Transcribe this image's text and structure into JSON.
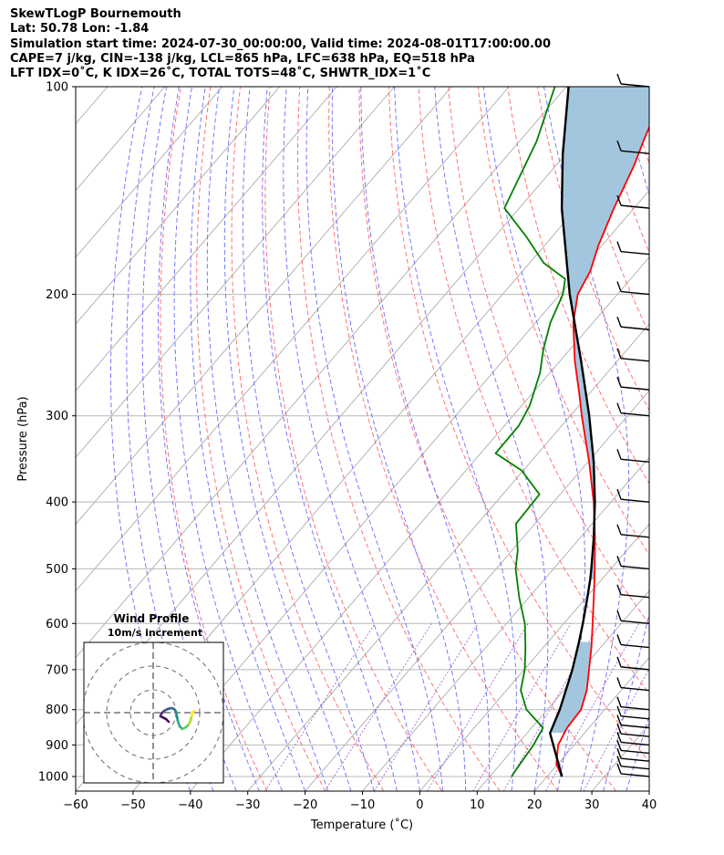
{
  "header": {
    "line1": "SkewTLogP Bournemouth",
    "line2": "Lat: 50.78   Lon: -1.84",
    "line3": "Simulation start time: 2024-07-30_00:00:00, Valid time: 2024-08-01T17:00:00.00",
    "line4": "CAPE=7 j/kg, CIN=-138 j/kg, LCL=865 hPa, LFC=638 hPa, EQ=518 hPa",
    "line5": "LFT IDX=0˚C, K IDX=26˚C, TOTAL TOTS=48˚C, SHWTR_IDX=1˚C"
  },
  "chart_data": {
    "type": "skewt-logp",
    "xlabel": "Temperature (˚C)",
    "ylabel": "Pressure (hPa)",
    "xlim": [
      -60,
      40
    ],
    "ylim": [
      1050,
      100
    ],
    "x_ticks": [
      "−60",
      "−50",
      "−40",
      "−30",
      "−20",
      "−10",
      "0",
      "10",
      "20",
      "30",
      "40"
    ],
    "y_ticks": [
      "100",
      "200",
      "300",
      "400",
      "500",
      "600",
      "700",
      "800",
      "900",
      "1000"
    ],
    "grid": true,
    "series": [
      {
        "name": "Temperature",
        "color": "#ff0000",
        "points": [
          [
            1000,
            22.6
          ],
          [
            960,
            19.8
          ],
          [
            900,
            17.2
          ],
          [
            850,
            16.2
          ],
          [
            800,
            15.9
          ],
          [
            750,
            14.0
          ],
          [
            700,
            11.3
          ],
          [
            650,
            8.4
          ],
          [
            600,
            5.0
          ],
          [
            550,
            1.3
          ],
          [
            500,
            -2.8
          ],
          [
            450,
            -7.5
          ],
          [
            400,
            -13.0
          ],
          [
            350,
            -19.8
          ],
          [
            300,
            -28.0
          ],
          [
            280,
            -31.5
          ],
          [
            250,
            -37.4
          ],
          [
            220,
            -43.4
          ],
          [
            200,
            -46.9
          ],
          [
            185,
            -48.2
          ],
          [
            170,
            -50.6
          ],
          [
            150,
            -53.5
          ],
          [
            130,
            -56.4
          ],
          [
            120,
            -58.4
          ],
          [
            110,
            -60.4
          ],
          [
            100,
            -63.0
          ]
        ]
      },
      {
        "name": "Dewpoint",
        "color": "#008000",
        "points": [
          [
            1000,
            13.8
          ],
          [
            980,
            13.6
          ],
          [
            900,
            12.9
          ],
          [
            850,
            12.0
          ],
          [
            800,
            6.4
          ],
          [
            750,
            2.5
          ],
          [
            700,
            0.1
          ],
          [
            650,
            -3.1
          ],
          [
            600,
            -6.8
          ],
          [
            550,
            -11.7
          ],
          [
            500,
            -16.6
          ],
          [
            470,
            -19.0
          ],
          [
            430,
            -23.3
          ],
          [
            390,
            -23.6
          ],
          [
            360,
            -30.3
          ],
          [
            340,
            -37.4
          ],
          [
            310,
            -37.5
          ],
          [
            290,
            -38.6
          ],
          [
            260,
            -41.7
          ],
          [
            240,
            -44.7
          ],
          [
            220,
            -47.4
          ],
          [
            200,
            -49.5
          ],
          [
            190,
            -51.4
          ],
          [
            180,
            -57.6
          ],
          [
            165,
            -64.5
          ],
          [
            150,
            -72.6
          ],
          [
            120,
            -77.0
          ],
          [
            100,
            -82.0
          ]
        ]
      },
      {
        "name": "Parcel",
        "color": "#000000",
        "points": [
          [
            1000,
            22.6
          ],
          [
            865,
            14.0
          ],
          [
            800,
            12.2
          ],
          [
            700,
            8.4
          ],
          [
            638,
            5.4
          ],
          [
            600,
            3.3
          ],
          [
            550,
            0.2
          ],
          [
            518,
            -2.0
          ],
          [
            500,
            -3.4
          ],
          [
            450,
            -7.7
          ],
          [
            400,
            -12.8
          ],
          [
            350,
            -19.0
          ],
          [
            300,
            -26.7
          ],
          [
            250,
            -36.3
          ],
          [
            200,
            -48.3
          ],
          [
            150,
            -62.6
          ],
          [
            125,
            -70.6
          ],
          [
            100,
            -79.6
          ]
        ]
      }
    ],
    "cape_fill_color": "#a3c6df",
    "wind_barbs": {
      "pressures": [
        1000,
        975,
        950,
        925,
        900,
        875,
        850,
        825,
        800,
        750,
        700,
        650,
        600,
        550,
        500,
        450,
        400,
        350,
        300,
        275,
        250,
        225,
        200,
        175,
        150,
        125,
        100
      ]
    },
    "inset": {
      "title": "Wind Profile",
      "subtitle": "10m/s increment"
    }
  }
}
